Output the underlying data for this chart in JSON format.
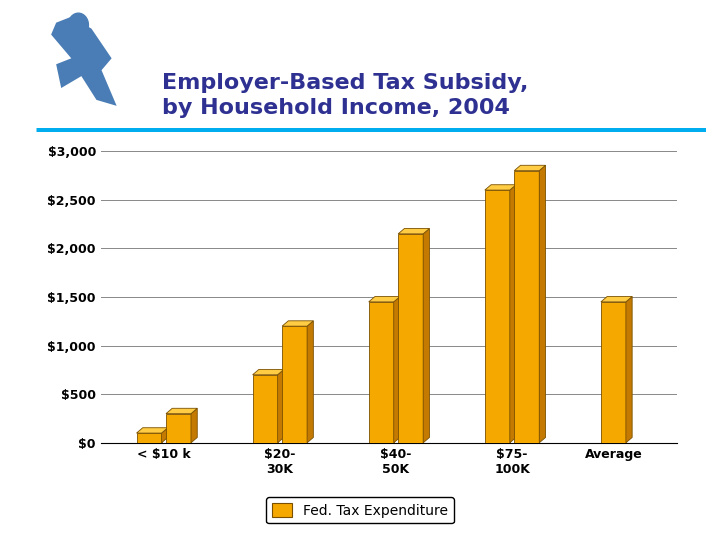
{
  "title_line1": "Employer-Based Tax Subsidy,",
  "title_line2": "by Household Income, 2004",
  "title_color": "#2E3191",
  "bar_groups": [
    {
      "label": "< $10 k",
      "vals": [
        100,
        300
      ]
    },
    {
      "label": "$20-\n30K",
      "vals": [
        700,
        1200
      ]
    },
    {
      "label": "$40-\n50K",
      "vals": [
        1450,
        2150
      ]
    },
    {
      "label": "$75-\n100K",
      "vals": [
        2600,
        2800
      ]
    },
    {
      "label": "Average",
      "vals": [
        1450,
        null
      ]
    }
  ],
  "bar_color_front": "#F5A800",
  "bar_color_side": "#C47A00",
  "bar_color_top": "#FFCC44",
  "ylim": [
    0,
    3000
  ],
  "yticks": [
    0,
    500,
    1000,
    1500,
    2000,
    2500,
    3000
  ],
  "ytick_labels": [
    "$0",
    "$500",
    "$1,000",
    "$1,500",
    "$2,000",
    "$2,500",
    "$3,000"
  ],
  "legend_label": "Fed. Tax Expenditure",
  "separator_color": "#00AEEF",
  "icon_color": "#4A7DB5",
  "bg_color": "#FFFFFF",
  "grid_color": "#888888",
  "title_fontsize": 16,
  "tick_fontsize": 9
}
